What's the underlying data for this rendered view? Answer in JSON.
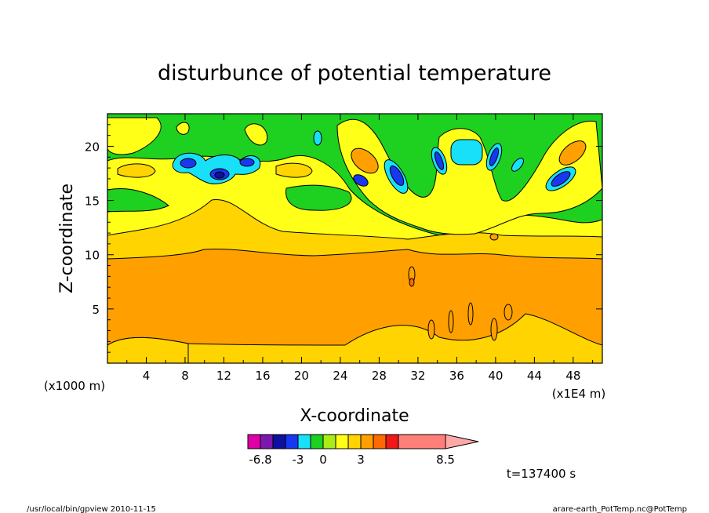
{
  "chart_data": {
    "type": "heatmap",
    "title": "disturbunce of potential temperature",
    "xlabel": "X-coordinate",
    "ylabel": "Z-coordinate",
    "x_unit_left": "(x1000 m)",
    "x_unit_right": "(x1E4 m)",
    "xlim": [
      0,
      51
    ],
    "ylim": [
      0,
      23
    ],
    "x_ticks": [
      4,
      8,
      12,
      16,
      20,
      24,
      28,
      32,
      36,
      40,
      44,
      48
    ],
    "y_ticks": [
      5,
      10,
      15,
      20
    ],
    "time_label": "t=137400 s",
    "colorbar": {
      "colors": [
        "#e000a8",
        "#7c18b0",
        "#1010a0",
        "#1838f0",
        "#18e0f8",
        "#1ed020",
        "#a8ec18",
        "#ffff18",
        "#ffd400",
        "#ffa000",
        "#ff6a00",
        "#f01818",
        "#ff8078",
        "#ffa8a8"
      ],
      "labels": [
        {
          "text": "-6.8",
          "index": 0
        },
        {
          "text": "-3",
          "index": 3
        },
        {
          "text": "0",
          "index": 5
        },
        {
          "text": "3",
          "index": 8
        },
        {
          "text": "8.5",
          "index": 12
        }
      ]
    },
    "regions": [
      {
        "level": "orange",
        "description": "z 1-10, broad layer across domain"
      },
      {
        "level": "gold",
        "description": "z 10-13 and z 0-2"
      },
      {
        "level": "yellow",
        "description": "z 13-17"
      },
      {
        "level": "green",
        "description": "z 17-23"
      },
      {
        "level": "blue/cyan",
        "description": "x 8-15 and x 26-48, z 16-21"
      }
    ]
  },
  "footer": {
    "left": "/usr/local/bin/gpview   2010-11-15",
    "right": "arare-earth_PotTemp.nc@PotTemp"
  }
}
